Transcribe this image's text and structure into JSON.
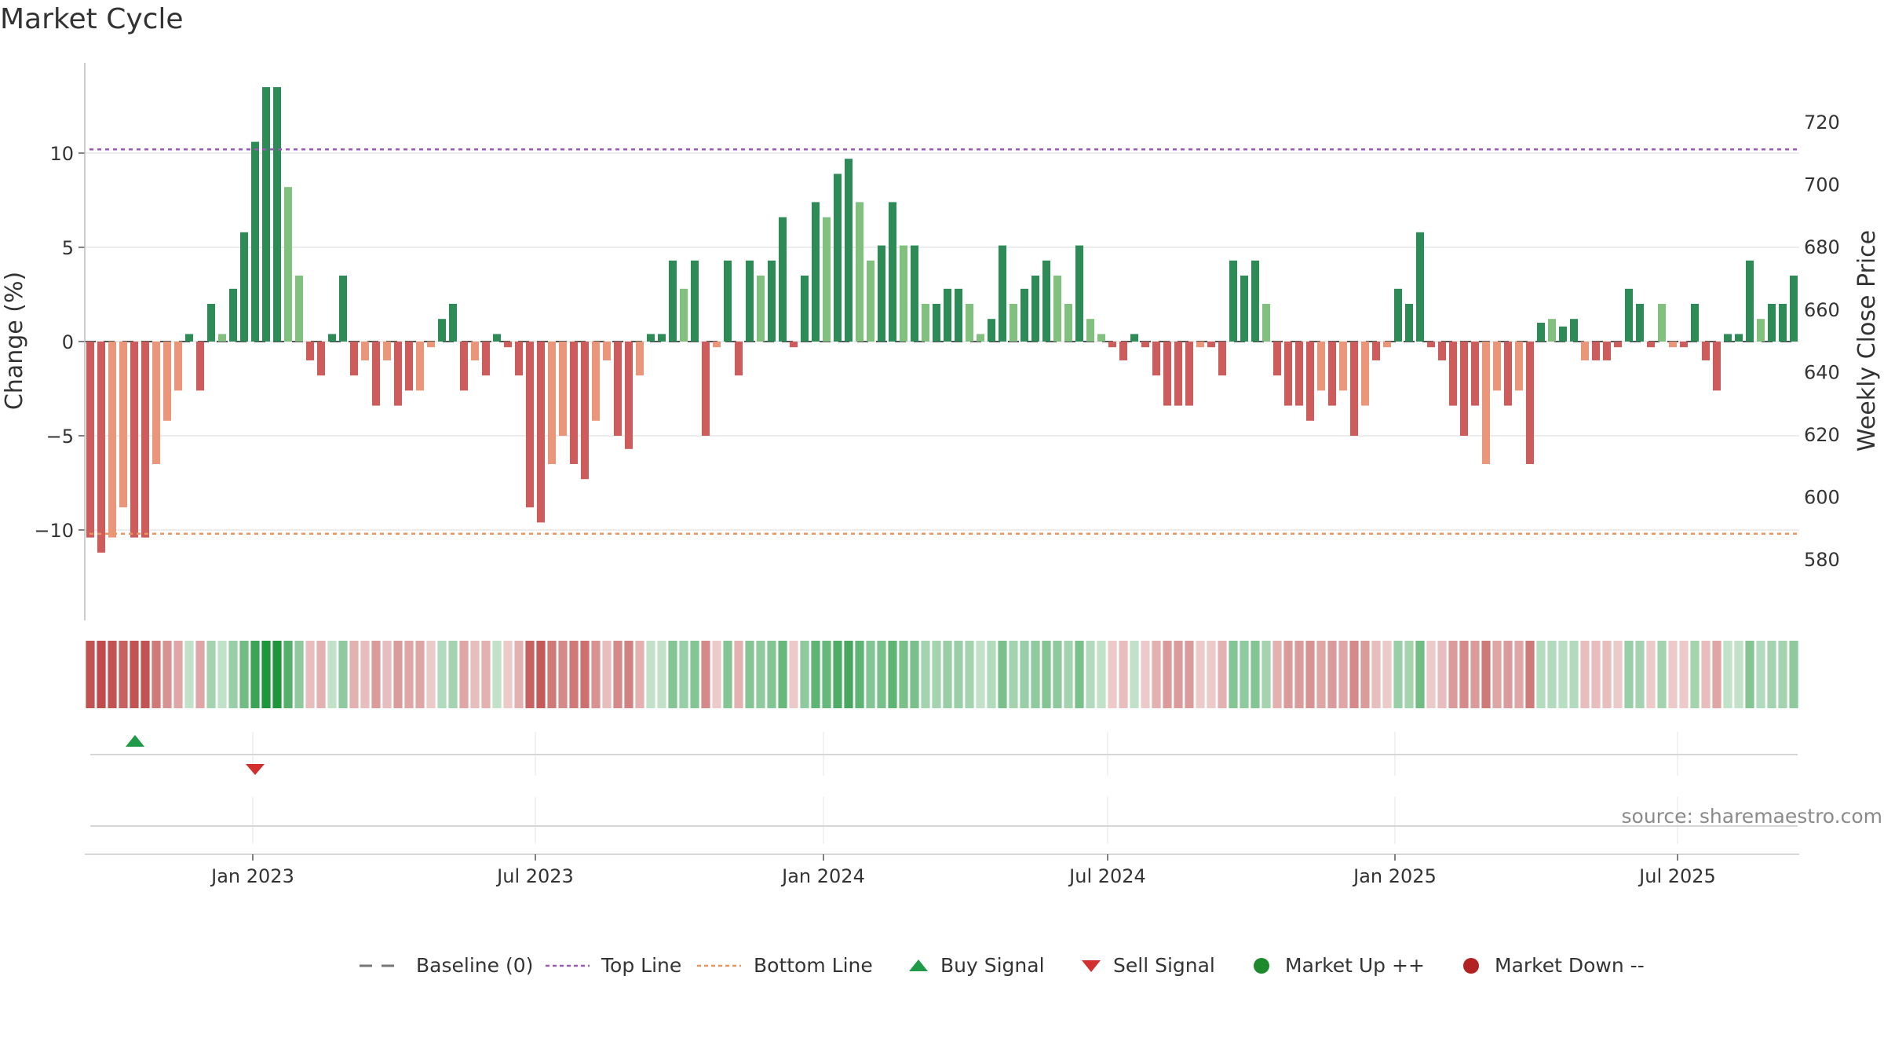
{
  "chart_data": {
    "type": "bar",
    "title": "Market Cycle",
    "ylabel_left": "Change (%)",
    "ylabel_right": "Weekly Close Price",
    "left_ticks": [
      10,
      5,
      0,
      -5,
      -10
    ],
    "left_tick_labels": [
      "10",
      "5",
      "0",
      "−5",
      "−10"
    ],
    "right_ticks": [
      720,
      700,
      680,
      660,
      640,
      620,
      600,
      580
    ],
    "ylim_left": [
      -14.5,
      14.5
    ],
    "ylim_right": [
      572,
      730
    ],
    "top_line": 10.2,
    "bottom_line": -10.2,
    "x_ticks": [
      "Jan 2023",
      "Jul 2023",
      "Jan 2024",
      "Jul 2024",
      "Jan 2025",
      "Jul 2025"
    ],
    "values": [
      -10.4,
      -11.2,
      -10.4,
      -8.8,
      -10.4,
      -10.4,
      -6.5,
      -4.2,
      -2.6,
      0.4,
      -2.6,
      2.0,
      0.4,
      2.8,
      5.8,
      10.6,
      13.5,
      13.5,
      8.2,
      3.5,
      -1.0,
      -1.8,
      0.4,
      3.5,
      -1.8,
      -1.0,
      -3.4,
      -1.0,
      -3.4,
      -2.6,
      -2.6,
      -0.3,
      1.2,
      2.0,
      -2.6,
      -1.0,
      -1.8,
      0.4,
      -0.3,
      -1.8,
      -8.8,
      -9.6,
      -6.5,
      -5.0,
      -6.5,
      -7.3,
      -4.2,
      -1.0,
      -5.0,
      -5.7,
      -1.8,
      0.4,
      0.4,
      4.3,
      2.8,
      4.3,
      -5.0,
      -0.3,
      4.3,
      -1.8,
      4.3,
      3.5,
      4.3,
      6.6,
      -0.3,
      3.5,
      7.4,
      6.6,
      8.9,
      9.7,
      7.4,
      4.3,
      5.1,
      7.4,
      5.1,
      5.1,
      2.0,
      2.0,
      2.8,
      2.8,
      2.0,
      0.4,
      1.2,
      5.1,
      2.0,
      2.8,
      3.5,
      4.3,
      3.5,
      2.0,
      5.1,
      1.2,
      0.4,
      -0.3,
      -1.0,
      0.4,
      -0.3,
      -1.8,
      -3.4,
      -3.4,
      -3.4,
      -0.3,
      -0.3,
      -1.8,
      4.3,
      3.5,
      4.3,
      2.0,
      -1.8,
      -3.4,
      -3.4,
      -4.2,
      -2.6,
      -3.4,
      -2.6,
      -5.0,
      -3.4,
      -1.0,
      -0.3,
      2.8,
      2.0,
      5.8,
      -0.3,
      -1.0,
      -3.4,
      -5.0,
      -3.4,
      -6.5,
      -2.6,
      -3.4,
      -2.6,
      -6.5,
      1.0,
      1.2,
      0.8,
      1.2,
      -1.0,
      -1.0,
      -1.0,
      -0.3,
      2.8,
      2.0,
      -0.3,
      2.0,
      -0.3,
      -0.3,
      2.0,
      -1.0,
      -2.6,
      0.4,
      0.4,
      4.3,
      1.2,
      2.0,
      2.0,
      3.5
    ],
    "bar_shades": [
      3,
      3,
      1,
      1,
      3,
      3,
      1,
      1,
      1,
      3,
      3,
      3,
      1,
      3,
      3,
      3,
      3,
      3,
      1,
      1,
      3,
      3,
      3,
      3,
      3,
      1,
      3,
      1,
      3,
      3,
      1,
      1,
      3,
      3,
      3,
      1,
      3,
      3,
      3,
      3,
      3,
      3,
      1,
      1,
      3,
      3,
      1,
      1,
      3,
      3,
      1,
      3,
      3,
      3,
      1,
      3,
      3,
      1,
      3,
      3,
      3,
      1,
      3,
      3,
      3,
      3,
      3,
      1,
      3,
      3,
      1,
      1,
      3,
      3,
      1,
      3,
      1,
      3,
      3,
      3,
      1,
      1,
      3,
      3,
      1,
      3,
      3,
      3,
      1,
      1,
      3,
      1,
      1,
      3,
      3,
      3,
      3,
      3,
      3,
      3,
      3,
      1,
      3,
      3,
      3,
      3,
      3,
      1,
      3,
      3,
      3,
      3,
      1,
      3,
      1,
      3,
      1,
      3,
      1,
      3,
      3,
      3,
      3,
      3,
      3,
      3,
      3,
      1,
      1,
      3,
      1,
      3,
      3,
      1,
      3,
      3,
      1,
      3,
      3,
      3,
      3,
      3,
      3,
      1,
      1,
      3,
      3,
      3,
      3,
      3,
      3,
      3,
      1,
      3,
      3,
      3
    ],
    "series": [
      {
        "name": "Baseline (0)",
        "style": "dashed",
        "color": "#777777"
      },
      {
        "name": "Top Line",
        "style": "dotted",
        "color": "#9b59b6"
      },
      {
        "name": "Bottom Line",
        "style": "dotted",
        "color": "#e8955f"
      },
      {
        "name": "Buy Signal",
        "marker": "triangle-up",
        "color": "#1e9a48"
      },
      {
        "name": "Sell Signal",
        "marker": "triangle-down",
        "color": "#d32f2f"
      },
      {
        "name": "Market Up ++",
        "marker": "circle",
        "color": "#1e8a2e"
      },
      {
        "name": "Market Down --",
        "marker": "circle",
        "color": "#b22222"
      }
    ],
    "buy_signal_dates": [
      "2022-11-07"
    ],
    "sell_signal_dates": [
      "2023-01-02"
    ],
    "source": "source: sharemaestro.com",
    "colors": {
      "up_dark": "#2e8b57",
      "up_light": "#82c07f",
      "down_dark": "#cd5c5c",
      "down_light": "#e9967a"
    }
  }
}
